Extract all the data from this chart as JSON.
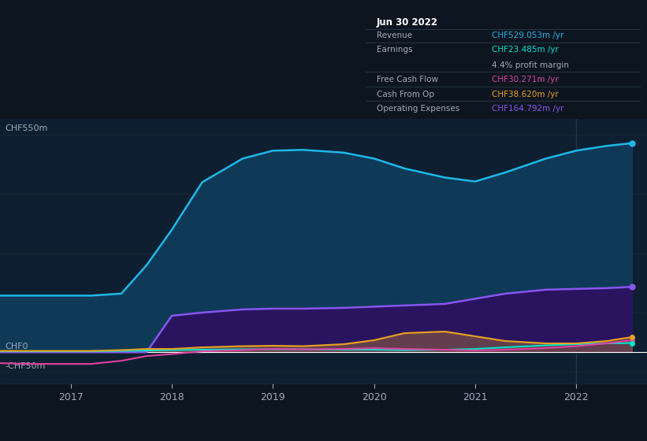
{
  "background_color": "#0d1520",
  "plot_bg_color": "#0d1f30",
  "ylabel_top": "CHF550m",
  "ylabel_zero": "CHF0",
  "ylabel_neg": "-CHF50m",
  "x_years": [
    2016.3,
    2016.6,
    2017.0,
    2017.2,
    2017.5,
    2017.75,
    2018.0,
    2018.3,
    2018.7,
    2019.0,
    2019.3,
    2019.7,
    2020.0,
    2020.3,
    2020.7,
    2021.0,
    2021.3,
    2021.7,
    2022.0,
    2022.3,
    2022.55
  ],
  "revenue": [
    143,
    143,
    143,
    143,
    148,
    220,
    310,
    430,
    490,
    510,
    512,
    505,
    490,
    465,
    442,
    432,
    455,
    490,
    510,
    522,
    529
  ],
  "earnings": [
    2,
    2,
    2,
    2,
    3,
    4,
    5,
    6,
    7,
    7,
    7,
    6,
    6,
    5,
    6,
    8,
    12,
    17,
    20,
    22,
    23
  ],
  "free_cash_flow": [
    -28,
    -30,
    -30,
    -30,
    -22,
    -10,
    -5,
    2,
    5,
    8,
    7,
    8,
    10,
    8,
    6,
    4,
    6,
    10,
    15,
    22,
    30
  ],
  "cash_from_op": [
    3,
    3,
    3,
    3,
    5,
    8,
    8,
    12,
    15,
    16,
    15,
    20,
    30,
    48,
    52,
    40,
    28,
    22,
    22,
    28,
    38
  ],
  "operating_exp": [
    0,
    0,
    0,
    0,
    0,
    0,
    92,
    100,
    108,
    110,
    110,
    112,
    115,
    118,
    122,
    135,
    148,
    158,
    160,
    162,
    165
  ],
  "revenue_color": "#1eb8e8",
  "earnings_color": "#00e5cc",
  "free_cash_flow_color": "#e040a0",
  "cash_from_op_color": "#e8a020",
  "operating_exp_color": "#8855ee",
  "revenue_fill": "#0e3a58",
  "operating_fill": "#2a1460",
  "cash_fill": "#e8a020",
  "tooltip_bg": "#0a1520",
  "tooltip_border": "#2a3a4a",
  "grid_color": "#182838",
  "text_color": "#a0aab8",
  "legend_bg": "#0a1520",
  "legend_border": "#2a3a4a",
  "info_title": "Jun 30 2022",
  "info_revenue_label": "Revenue",
  "info_revenue_val": "CHF529.053m",
  "info_revenue_color": "#1eb8e8",
  "info_earnings_label": "Earnings",
  "info_earnings_val": "CHF23.485m",
  "info_earnings_color": "#00e5cc",
  "info_margin": "4.4% profit margin",
  "info_fcf_label": "Free Cash Flow",
  "info_fcf_val": "CHF30.271m",
  "info_fcf_color": "#e040a0",
  "info_cfop_label": "Cash From Op",
  "info_cfop_val": "CHF38.620m",
  "info_cfop_color": "#e8a020",
  "info_opex_label": "Operating Expenses",
  "info_opex_val": "CHF164.792m",
  "info_opex_color": "#8855ee",
  "vline_x": 2022.0,
  "vline_color": "#2a3a4a",
  "ylim": [
    -80,
    590
  ],
  "xlim": [
    2016.3,
    2022.7
  ],
  "xticks": [
    2017,
    2018,
    2019,
    2020,
    2021,
    2022
  ]
}
